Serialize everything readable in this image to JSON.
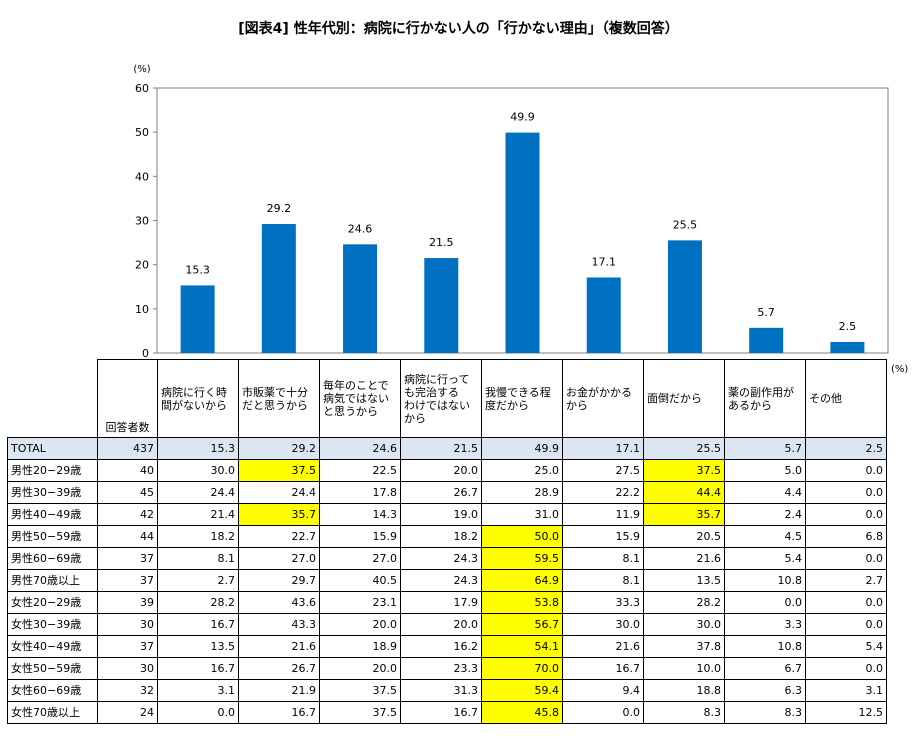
{
  "title": "[図表4] 性年代別：病院に行かない人の「行かない理由」（複数回答）",
  "chart_data": {
    "type": "bar",
    "unit": "(%)",
    "ylim": [
      0,
      60
    ],
    "yticks": [
      0,
      10,
      20,
      30,
      40,
      50,
      60
    ],
    "bar_color": "#0070c0",
    "categories": [
      "病院に行く時間がないから",
      "市販薬で十分だと思うから",
      "毎年のことで病気ではないと思うから",
      "病院に行っても完治するわけではないから",
      "我慢できる程度だから",
      "お金がかかるから",
      "面倒だから",
      "薬の副作用があるから",
      "その他"
    ],
    "values": [
      15.3,
      29.2,
      24.6,
      21.5,
      49.9,
      17.1,
      25.5,
      5.7,
      2.5
    ],
    "value_labels": [
      "15.3",
      "29.2",
      "24.6",
      "21.5",
      "49.9",
      "17.1",
      "25.5",
      "5.7",
      "2.5"
    ]
  },
  "table": {
    "unit": "(%)",
    "count_header": "回答者数",
    "highlight_color": "#ffff00",
    "total_row_color": "#dce6f1",
    "headers": [
      [
        "病院に行く時",
        "間がないから"
      ],
      [
        "市販薬で十分",
        "だと思うから"
      ],
      [
        "毎年のことで",
        "病気ではない",
        "と思うから"
      ],
      [
        "病院に行って",
        "も完治する",
        "わけではない",
        "から"
      ],
      [
        "我慢できる程",
        "度だから"
      ],
      [
        "お金がかかる",
        "から"
      ],
      [
        "面倒だから"
      ],
      [
        "薬の副作用が",
        "あるから"
      ],
      [
        "その他"
      ]
    ],
    "rows": [
      {
        "label": "TOTAL",
        "n": "437",
        "vals": [
          "15.3",
          "29.2",
          "24.6",
          "21.5",
          "49.9",
          "17.1",
          "25.5",
          "5.7",
          "2.5"
        ],
        "hl": []
      },
      {
        "label": "男性20−29歳",
        "n": "40",
        "vals": [
          "30.0",
          "37.5",
          "22.5",
          "20.0",
          "25.0",
          "27.5",
          "37.5",
          "5.0",
          "0.0"
        ],
        "hl": [
          1,
          6
        ]
      },
      {
        "label": "男性30−39歳",
        "n": "45",
        "vals": [
          "24.4",
          "24.4",
          "17.8",
          "26.7",
          "28.9",
          "22.2",
          "44.4",
          "4.4",
          "0.0"
        ],
        "hl": [
          6
        ]
      },
      {
        "label": "男性40−49歳",
        "n": "42",
        "vals": [
          "21.4",
          "35.7",
          "14.3",
          "19.0",
          "31.0",
          "11.9",
          "35.7",
          "2.4",
          "0.0"
        ],
        "hl": [
          1,
          6
        ]
      },
      {
        "label": "男性50−59歳",
        "n": "44",
        "vals": [
          "18.2",
          "22.7",
          "15.9",
          "18.2",
          "50.0",
          "15.9",
          "20.5",
          "4.5",
          "6.8"
        ],
        "hl": [
          4
        ]
      },
      {
        "label": "男性60−69歳",
        "n": "37",
        "vals": [
          "8.1",
          "27.0",
          "27.0",
          "24.3",
          "59.5",
          "8.1",
          "21.6",
          "5.4",
          "0.0"
        ],
        "hl": [
          4
        ]
      },
      {
        "label": "男性70歳以上",
        "n": "37",
        "vals": [
          "2.7",
          "29.7",
          "40.5",
          "24.3",
          "64.9",
          "8.1",
          "13.5",
          "10.8",
          "2.7"
        ],
        "hl": [
          4
        ]
      },
      {
        "label": "女性20−29歳",
        "n": "39",
        "vals": [
          "28.2",
          "43.6",
          "23.1",
          "17.9",
          "53.8",
          "33.3",
          "28.2",
          "0.0",
          "0.0"
        ],
        "hl": [
          4
        ]
      },
      {
        "label": "女性30−39歳",
        "n": "30",
        "vals": [
          "16.7",
          "43.3",
          "20.0",
          "20.0",
          "56.7",
          "30.0",
          "30.0",
          "3.3",
          "0.0"
        ],
        "hl": [
          4
        ]
      },
      {
        "label": "女性40−49歳",
        "n": "37",
        "vals": [
          "13.5",
          "21.6",
          "18.9",
          "16.2",
          "54.1",
          "21.6",
          "37.8",
          "10.8",
          "5.4"
        ],
        "hl": [
          4
        ]
      },
      {
        "label": "女性50−59歳",
        "n": "30",
        "vals": [
          "16.7",
          "26.7",
          "20.0",
          "23.3",
          "70.0",
          "16.7",
          "10.0",
          "6.7",
          "0.0"
        ],
        "hl": [
          4
        ]
      },
      {
        "label": "女性60−69歳",
        "n": "32",
        "vals": [
          "3.1",
          "21.9",
          "37.5",
          "31.3",
          "59.4",
          "9.4",
          "18.8",
          "6.3",
          "3.1"
        ],
        "hl": [
          4
        ]
      },
      {
        "label": "女性70歳以上",
        "n": "24",
        "vals": [
          "0.0",
          "16.7",
          "37.5",
          "16.7",
          "45.8",
          "0.0",
          "8.3",
          "8.3",
          "12.5"
        ],
        "hl": [
          4
        ]
      }
    ]
  }
}
